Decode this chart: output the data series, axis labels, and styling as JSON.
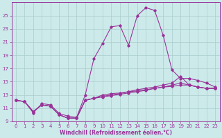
{
  "background_color": "#cceaea",
  "grid_color": "#aacccc",
  "line_color": "#993399",
  "xlabel": "Windchill (Refroidissement éolien,°C)",
  "xlim": [
    -0.5,
    23.5
  ],
  "ylim": [
    9,
    27
  ],
  "yticks": [
    9,
    11,
    13,
    15,
    17,
    19,
    21,
    23,
    25
  ],
  "xticks": [
    0,
    1,
    2,
    3,
    4,
    5,
    6,
    7,
    8,
    9,
    10,
    11,
    12,
    13,
    14,
    15,
    16,
    17,
    18,
    19,
    20,
    21,
    22,
    23
  ],
  "line1_x": [
    0,
    1,
    2,
    3,
    4,
    5,
    6,
    7,
    8,
    9,
    10,
    11,
    12,
    13,
    14,
    15,
    16,
    17,
    18,
    19,
    20,
    21,
    22,
    23
  ],
  "line1_y": [
    12.2,
    12.0,
    10.3,
    11.7,
    11.5,
    10.2,
    9.8,
    9.6,
    13.0,
    18.5,
    20.8,
    23.3,
    23.5,
    20.5,
    25.0,
    26.2,
    25.8,
    22.0,
    16.8,
    15.5,
    15.5,
    15.2,
    14.8,
    14.2
  ],
  "line2_x": [
    0,
    1,
    2,
    3,
    4,
    5,
    6,
    7,
    8,
    9,
    10,
    11,
    12,
    13,
    14,
    15,
    16,
    17,
    18,
    19,
    20,
    21,
    22,
    23
  ],
  "line2_y": [
    12.2,
    12.0,
    10.5,
    11.5,
    11.3,
    10.0,
    9.5,
    9.5,
    12.2,
    12.5,
    13.0,
    13.2,
    13.3,
    13.5,
    13.8,
    14.0,
    14.2,
    14.5,
    14.8,
    15.8,
    14.5,
    14.2,
    14.0,
    14.0
  ],
  "line3_x": [
    0,
    1,
    2,
    3,
    4,
    5,
    6,
    7,
    8,
    9,
    10,
    11,
    12,
    13,
    14,
    15,
    16,
    17,
    18,
    19,
    20,
    21,
    22,
    23
  ],
  "line3_y": [
    12.2,
    12.0,
    10.5,
    11.5,
    11.3,
    10.0,
    9.5,
    9.5,
    12.2,
    12.5,
    12.8,
    13.0,
    13.2,
    13.5,
    13.6,
    13.8,
    14.0,
    14.2,
    14.5,
    14.8,
    14.5,
    14.2,
    14.0,
    14.0
  ],
  "line4_x": [
    0,
    1,
    2,
    3,
    4,
    5,
    6,
    7,
    8,
    9,
    10,
    11,
    12,
    13,
    14,
    15,
    16,
    17,
    18,
    19,
    20,
    21,
    22,
    23
  ],
  "line4_y": [
    12.2,
    12.0,
    10.5,
    11.5,
    11.3,
    10.0,
    9.5,
    9.5,
    12.2,
    12.5,
    12.7,
    12.9,
    13.1,
    13.3,
    13.5,
    13.7,
    14.0,
    14.2,
    14.3,
    14.5,
    14.5,
    14.2,
    14.0,
    14.0
  ],
  "xlabel_fontsize": 5.5,
  "tick_fontsize": 5.0,
  "marker_size": 1.8,
  "line_width": 0.8
}
